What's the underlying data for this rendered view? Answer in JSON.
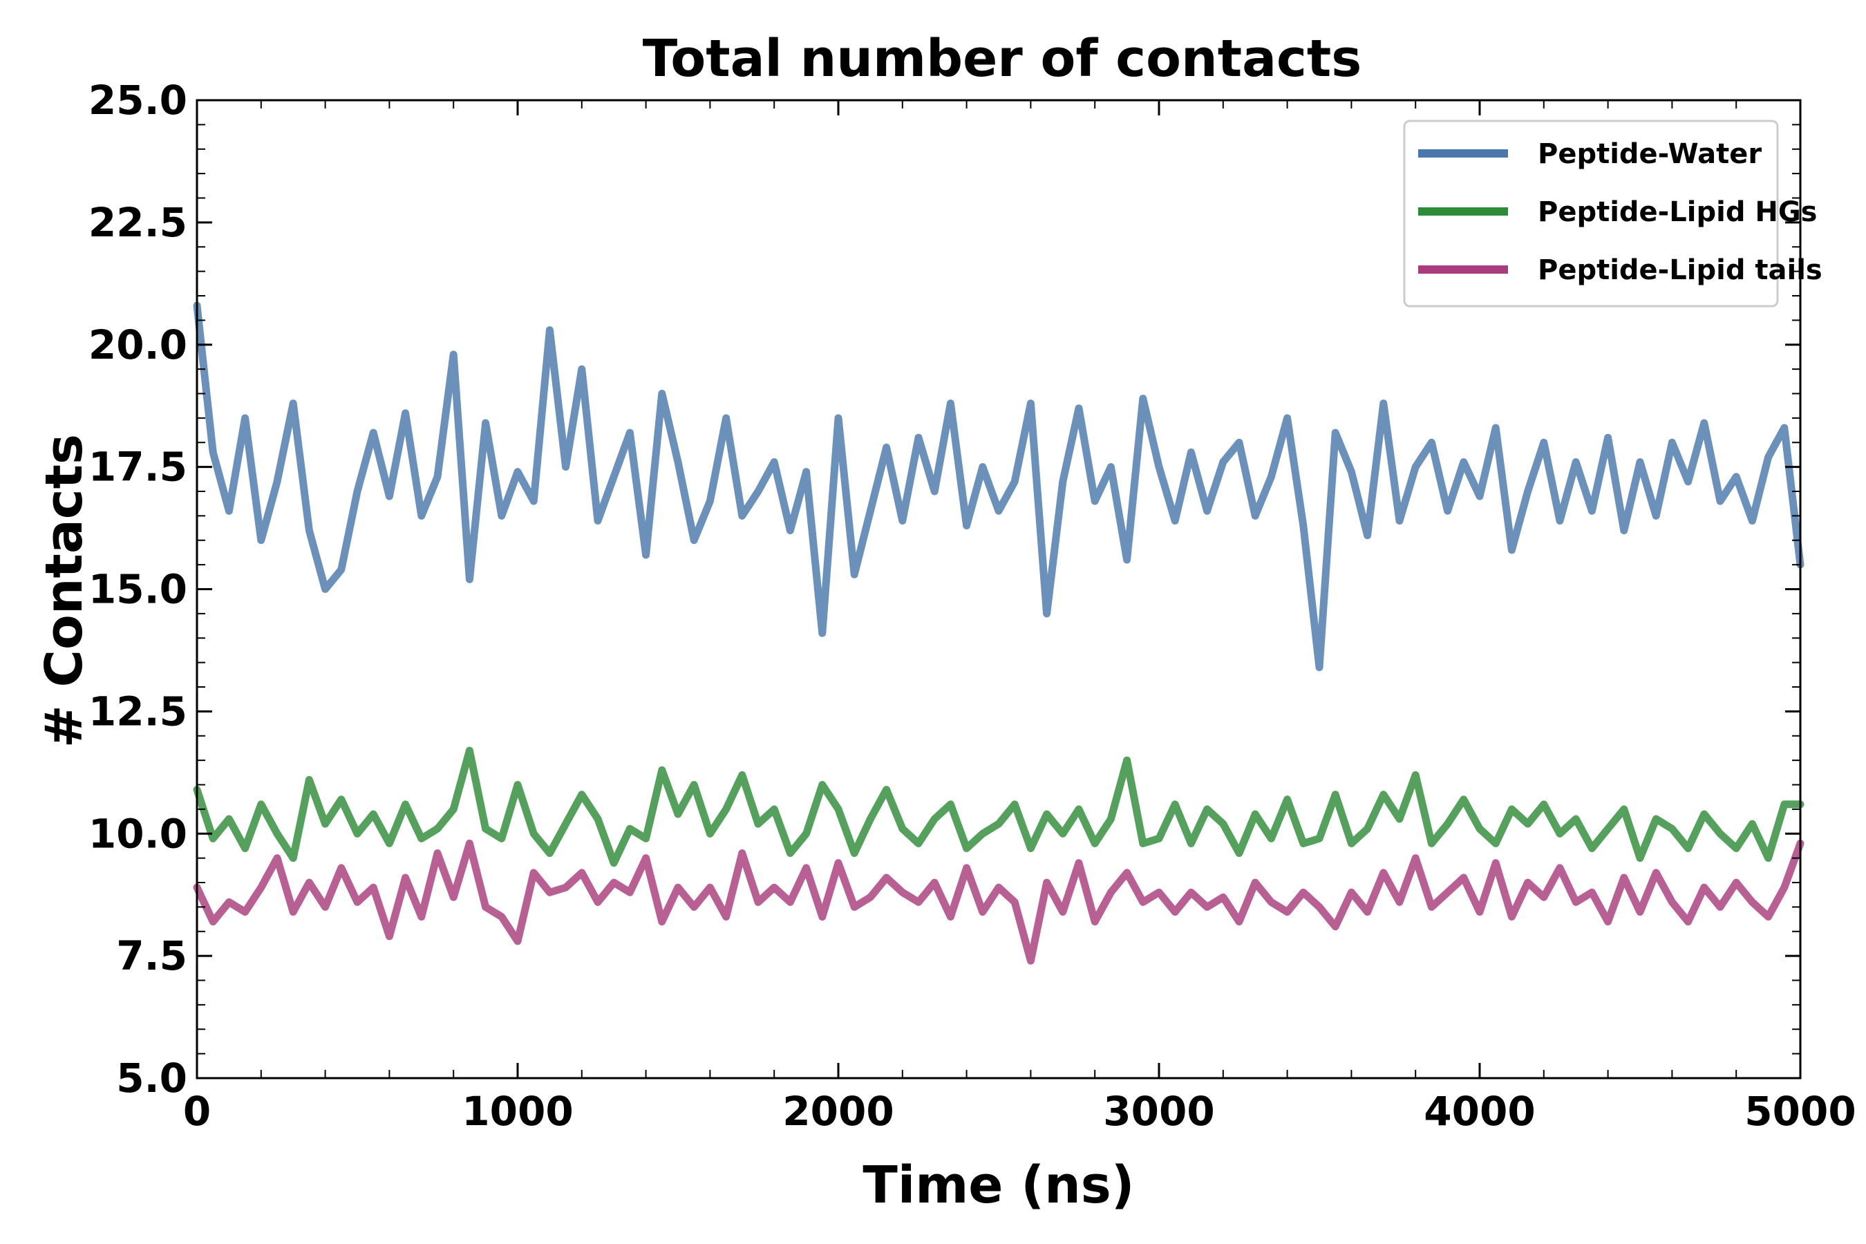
{
  "chart_data": {
    "type": "line",
    "title": "Total number of contacts",
    "xlabel": "Time (ns)",
    "ylabel": "# Contacts",
    "xlim": [
      0,
      5000
    ],
    "ylim": [
      5.0,
      25.0
    ],
    "xticks": [
      0,
      1000,
      2000,
      3000,
      4000,
      5000
    ],
    "xtick_labels": [
      "0",
      "1000",
      "2000",
      "3000",
      "4000",
      "5000"
    ],
    "yticks": [
      5.0,
      7.5,
      10.0,
      12.5,
      15.0,
      17.5,
      20.0,
      22.5,
      25.0
    ],
    "ytick_labels": [
      "5.0",
      "7.5",
      "10.0",
      "12.5",
      "15.0",
      "17.5",
      "20.0",
      "22.5",
      "25.0"
    ],
    "grid": false,
    "legend_position": "top-right",
    "series": [
      {
        "name": "Peptide-Water",
        "color": "#4a78aa",
        "x": [
          0,
          50,
          100,
          150,
          200,
          250,
          300,
          350,
          400,
          450,
          500,
          550,
          600,
          650,
          700,
          750,
          800,
          850,
          900,
          950,
          1000,
          1050,
          1100,
          1150,
          1200,
          1250,
          1300,
          1350,
          1400,
          1450,
          1500,
          1550,
          1600,
          1650,
          1700,
          1750,
          1800,
          1850,
          1900,
          1950,
          2000,
          2050,
          2100,
          2150,
          2200,
          2250,
          2300,
          2350,
          2400,
          2450,
          2500,
          2550,
          2600,
          2650,
          2700,
          2750,
          2800,
          2850,
          2900,
          2950,
          3000,
          3050,
          3100,
          3150,
          3200,
          3250,
          3300,
          3350,
          3400,
          3450,
          3500,
          3550,
          3600,
          3650,
          3700,
          3750,
          3800,
          3850,
          3900,
          3950,
          4000,
          4050,
          4100,
          4150,
          4200,
          4250,
          4300,
          4350,
          4400,
          4450,
          4500,
          4550,
          4600,
          4650,
          4700,
          4750,
          4800,
          4850,
          4900,
          4950,
          5000
        ],
        "y": [
          20.8,
          17.8,
          16.6,
          18.5,
          16.0,
          17.2,
          18.8,
          16.2,
          15.0,
          15.4,
          17.0,
          18.2,
          16.9,
          18.6,
          16.5,
          17.3,
          19.8,
          15.2,
          18.4,
          16.5,
          17.4,
          16.8,
          20.3,
          17.5,
          19.5,
          16.4,
          17.3,
          18.2,
          15.7,
          19.0,
          17.6,
          16.0,
          16.8,
          18.5,
          16.5,
          17.0,
          17.6,
          16.2,
          17.4,
          14.1,
          18.5,
          15.3,
          16.6,
          17.9,
          16.4,
          18.1,
          17.0,
          18.8,
          16.3,
          17.5,
          16.6,
          17.2,
          18.8,
          14.5,
          17.2,
          18.7,
          16.8,
          17.5,
          15.6,
          18.9,
          17.5,
          16.4,
          17.8,
          16.6,
          17.6,
          18.0,
          16.5,
          17.3,
          18.5,
          16.3,
          13.4,
          18.2,
          17.4,
          16.1,
          18.8,
          16.4,
          17.5,
          18.0,
          16.6,
          17.6,
          16.9,
          18.3,
          15.8,
          17.0,
          18.0,
          16.4,
          17.6,
          16.6,
          18.1,
          16.2,
          17.6,
          16.5,
          18.0,
          17.2,
          18.4,
          16.8,
          17.3,
          16.4,
          17.7,
          18.3,
          15.5
        ]
      },
      {
        "name": "Peptide-Lipid HGs",
        "color": "#2e8b38",
        "x": [
          0,
          50,
          100,
          150,
          200,
          250,
          300,
          350,
          400,
          450,
          500,
          550,
          600,
          650,
          700,
          750,
          800,
          850,
          900,
          950,
          1000,
          1050,
          1100,
          1150,
          1200,
          1250,
          1300,
          1350,
          1400,
          1450,
          1500,
          1550,
          1600,
          1650,
          1700,
          1750,
          1800,
          1850,
          1900,
          1950,
          2000,
          2050,
          2100,
          2150,
          2200,
          2250,
          2300,
          2350,
          2400,
          2450,
          2500,
          2550,
          2600,
          2650,
          2700,
          2750,
          2800,
          2850,
          2900,
          2950,
          3000,
          3050,
          3100,
          3150,
          3200,
          3250,
          3300,
          3350,
          3400,
          3450,
          3500,
          3550,
          3600,
          3650,
          3700,
          3750,
          3800,
          3850,
          3900,
          3950,
          4000,
          4050,
          4100,
          4150,
          4200,
          4250,
          4300,
          4350,
          4400,
          4450,
          4500,
          4550,
          4600,
          4650,
          4700,
          4750,
          4800,
          4850,
          4900,
          4950,
          5000
        ],
        "y": [
          10.9,
          9.9,
          10.3,
          9.7,
          10.6,
          10.0,
          9.5,
          11.1,
          10.2,
          10.7,
          10.0,
          10.4,
          9.8,
          10.6,
          9.9,
          10.1,
          10.5,
          11.7,
          10.1,
          9.9,
          11.0,
          10.0,
          9.6,
          10.2,
          10.8,
          10.3,
          9.4,
          10.1,
          9.9,
          11.3,
          10.4,
          11.0,
          10.0,
          10.5,
          11.2,
          10.2,
          10.5,
          9.6,
          10.0,
          11.0,
          10.5,
          9.6,
          10.3,
          10.9,
          10.1,
          9.8,
          10.3,
          10.6,
          9.7,
          10.0,
          10.2,
          10.6,
          9.7,
          10.4,
          10.0,
          10.5,
          9.8,
          10.3,
          11.5,
          9.8,
          9.9,
          10.6,
          9.8,
          10.5,
          10.2,
          9.6,
          10.4,
          9.9,
          10.7,
          9.8,
          9.9,
          10.8,
          9.8,
          10.1,
          10.8,
          10.3,
          11.2,
          9.8,
          10.2,
          10.7,
          10.1,
          9.8,
          10.5,
          10.2,
          10.6,
          10.0,
          10.3,
          9.7,
          10.1,
          10.5,
          9.5,
          10.3,
          10.1,
          9.7,
          10.4,
          10.0,
          9.7,
          10.2,
          9.5,
          10.6,
          10.6
        ]
      },
      {
        "name": "Peptide-Lipid tails",
        "color": "#a83c7c",
        "x": [
          0,
          50,
          100,
          150,
          200,
          250,
          300,
          350,
          400,
          450,
          500,
          550,
          600,
          650,
          700,
          750,
          800,
          850,
          900,
          950,
          1000,
          1050,
          1100,
          1150,
          1200,
          1250,
          1300,
          1350,
          1400,
          1450,
          1500,
          1550,
          1600,
          1650,
          1700,
          1750,
          1800,
          1850,
          1900,
          1950,
          2000,
          2050,
          2100,
          2150,
          2200,
          2250,
          2300,
          2350,
          2400,
          2450,
          2500,
          2550,
          2600,
          2650,
          2700,
          2750,
          2800,
          2850,
          2900,
          2950,
          3000,
          3050,
          3100,
          3150,
          3200,
          3250,
          3300,
          3350,
          3400,
          3450,
          3500,
          3550,
          3600,
          3650,
          3700,
          3750,
          3800,
          3850,
          3900,
          3950,
          4000,
          4050,
          4100,
          4150,
          4200,
          4250,
          4300,
          4350,
          4400,
          4450,
          4500,
          4550,
          4600,
          4650,
          4700,
          4750,
          4800,
          4850,
          4900,
          4950,
          5000
        ],
        "y": [
          8.9,
          8.2,
          8.6,
          8.4,
          8.9,
          9.5,
          8.4,
          9.0,
          8.5,
          9.3,
          8.6,
          8.9,
          7.9,
          9.1,
          8.3,
          9.6,
          8.7,
          9.8,
          8.5,
          8.3,
          7.8,
          9.2,
          8.8,
          8.9,
          9.2,
          8.6,
          9.0,
          8.8,
          9.5,
          8.2,
          8.9,
          8.5,
          8.9,
          8.3,
          9.6,
          8.6,
          8.9,
          8.6,
          9.3,
          8.3,
          9.4,
          8.5,
          8.7,
          9.1,
          8.8,
          8.6,
          9.0,
          8.3,
          9.3,
          8.4,
          8.9,
          8.6,
          7.4,
          9.0,
          8.4,
          9.4,
          8.2,
          8.8,
          9.2,
          8.6,
          8.8,
          8.4,
          8.8,
          8.5,
          8.7,
          8.2,
          9.0,
          8.6,
          8.4,
          8.8,
          8.5,
          8.1,
          8.8,
          8.4,
          9.2,
          8.6,
          9.5,
          8.5,
          8.8,
          9.1,
          8.4,
          9.4,
          8.3,
          9.0,
          8.7,
          9.3,
          8.6,
          8.8,
          8.2,
          9.1,
          8.4,
          9.2,
          8.6,
          8.2,
          8.9,
          8.5,
          9.0,
          8.6,
          8.3,
          8.9,
          9.8
        ]
      }
    ]
  }
}
